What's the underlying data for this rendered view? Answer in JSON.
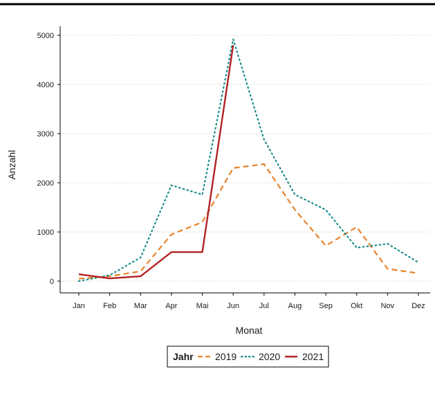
{
  "chart_data": {
    "type": "line",
    "xlabel": "Monat",
    "ylabel": "Anzahl",
    "categories": [
      "Jan",
      "Feb",
      "Mar",
      "Apr",
      "Mai",
      "Jun",
      "Jul",
      "Aug",
      "Sep",
      "Okt",
      "Nov",
      "Dez"
    ],
    "ylim": [
      0,
      5000
    ],
    "yticks": [
      0,
      1000,
      2000,
      3000,
      4000,
      5000
    ],
    "grid": "horizontal-dotted",
    "legend": {
      "title": "Jahr",
      "placement": "bottom"
    },
    "series": [
      {
        "name": "2019",
        "color": "#e8822a",
        "style": "dashed",
        "values": [
          50,
          100,
          200,
          950,
          1200,
          2300,
          2380,
          1450,
          720,
          1100,
          250,
          160
        ]
      },
      {
        "name": "2020",
        "color": "#168a8a",
        "style": "dotted",
        "values": [
          0,
          120,
          480,
          1950,
          1760,
          4920,
          2880,
          1760,
          1450,
          680,
          760,
          380
        ]
      },
      {
        "name": "2021",
        "color": "#b22222",
        "style": "solid",
        "values": [
          140,
          55,
          100,
          590,
          590,
          4800,
          null,
          null,
          null,
          null,
          null,
          null
        ]
      }
    ]
  }
}
